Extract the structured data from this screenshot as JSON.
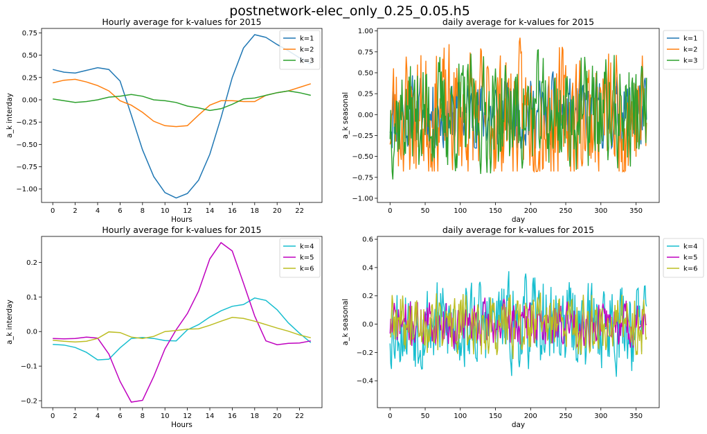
{
  "figure": {
    "suptitle": "postnetwork-elec_only_0.25_0.05.h5"
  },
  "chart_data": [
    {
      "type": "line",
      "title": "Hourly average for k-values for 2015",
      "xlabel": "Hours",
      "ylabel": "a_k interday",
      "xlim": [
        -1,
        24
      ],
      "ylim": [
        -1.15,
        0.8
      ],
      "xticks": [
        0,
        2,
        4,
        6,
        8,
        10,
        12,
        14,
        16,
        18,
        20,
        22
      ],
      "yticks": [
        0.75,
        0.5,
        0.25,
        0.0,
        -0.25,
        -0.5,
        -0.75,
        -1.0
      ],
      "ytick_labels": [
        "0.75",
        "0.50",
        "0.25",
        "0.00",
        "−0.25",
        "−0.50",
        "−0.75",
        "−1.00"
      ],
      "legend_position": "top-right",
      "series_kind": "hourly",
      "x": [
        0,
        1,
        2,
        3,
        4,
        5,
        6,
        7,
        8,
        9,
        10,
        11,
        12,
        13,
        14,
        15,
        16,
        17,
        18,
        19,
        20,
        21,
        22,
        23
      ],
      "series": [
        {
          "name": "k=1",
          "color": "#1f77b4",
          "values": [
            0.34,
            0.31,
            0.3,
            0.33,
            0.36,
            0.34,
            0.21,
            -0.17,
            -0.56,
            -0.86,
            -1.04,
            -1.1,
            -1.05,
            -0.9,
            -0.61,
            -0.2,
            0.25,
            0.58,
            0.73,
            0.7,
            0.62,
            0.55,
            0.47,
            0.4
          ]
        },
        {
          "name": "k=2",
          "color": "#ff7f0e",
          "values": [
            0.19,
            0.22,
            0.23,
            0.2,
            0.16,
            0.1,
            -0.01,
            -0.06,
            -0.14,
            -0.24,
            -0.29,
            -0.3,
            -0.29,
            -0.17,
            -0.06,
            -0.01,
            -0.01,
            -0.02,
            -0.02,
            0.05,
            0.08,
            0.1,
            0.14,
            0.18
          ]
        },
        {
          "name": "k=3",
          "color": "#2ca02c",
          "values": [
            0.01,
            -0.01,
            -0.03,
            -0.02,
            0.0,
            0.03,
            0.04,
            0.06,
            0.04,
            0.0,
            -0.01,
            -0.03,
            -0.07,
            -0.09,
            -0.12,
            -0.1,
            -0.05,
            0.01,
            0.02,
            0.05,
            0.08,
            0.1,
            0.08,
            0.05
          ]
        }
      ]
    },
    {
      "type": "line",
      "title": "daily average for k-values for 2015",
      "xlabel": "day",
      "ylabel": "a_k seasonal",
      "xlim": [
        -18,
        383
      ],
      "ylim": [
        -1.05,
        1.03
      ],
      "xticks": [
        0,
        50,
        100,
        150,
        200,
        250,
        300,
        350
      ],
      "yticks": [
        1.0,
        0.75,
        0.5,
        0.25,
        0.0,
        -0.25,
        -0.5,
        -0.75,
        -1.0
      ],
      "ytick_labels": [
        "1.00",
        "0.75",
        "0.50",
        "0.25",
        "0.00",
        "−0.25",
        "−0.50",
        "−0.75",
        "−1.00"
      ],
      "legend_position": "outside-right",
      "series_kind": "daily",
      "x_range": [
        0,
        365
      ],
      "series": [
        {
          "name": "k=1",
          "color": "#1f77b4",
          "amplitude": 0.28,
          "clip": [
            -0.4,
            0.62
          ],
          "seed": 11
        },
        {
          "name": "k=2",
          "color": "#ff7f0e",
          "amplitude": 0.5,
          "clip": [
            -0.68,
            0.94
          ],
          "seed": 23
        },
        {
          "name": "k=3",
          "color": "#2ca02c",
          "amplitude": 0.42,
          "clip": [
            -0.93,
            0.82
          ],
          "seed": 37
        }
      ]
    },
    {
      "type": "line",
      "title": "Hourly average for k-values for 2015",
      "xlabel": "Hours",
      "ylabel": "a_k interday",
      "xlim": [
        -1,
        24
      ],
      "ylim": [
        -0.22,
        0.275
      ],
      "xticks": [
        0,
        2,
        4,
        6,
        8,
        10,
        12,
        14,
        16,
        18,
        20,
        22
      ],
      "yticks": [
        0.2,
        0.1,
        0.0,
        -0.1,
        -0.2
      ],
      "ytick_labels": [
        "0.2",
        "0.1",
        "0.0",
        "−0.1",
        "−0.2"
      ],
      "legend_position": "top-right",
      "series_kind": "hourly",
      "x": [
        0,
        1,
        2,
        3,
        4,
        5,
        6,
        7,
        8,
        9,
        10,
        11,
        12,
        13,
        14,
        15,
        16,
        17,
        18,
        19,
        20,
        21,
        22,
        23
      ],
      "series": [
        {
          "name": "k=4",
          "color": "#17becf",
          "values": [
            -0.037,
            -0.039,
            -0.046,
            -0.06,
            -0.082,
            -0.08,
            -0.047,
            -0.02,
            -0.017,
            -0.02,
            -0.026,
            -0.027,
            0.005,
            0.02,
            0.042,
            0.06,
            0.073,
            0.078,
            0.097,
            0.09,
            0.063,
            0.025,
            -0.005,
            -0.032
          ]
        },
        {
          "name": "k=5",
          "color": "#bf00bf",
          "values": [
            -0.02,
            -0.021,
            -0.02,
            -0.016,
            -0.019,
            -0.065,
            -0.144,
            -0.204,
            -0.199,
            -0.13,
            -0.05,
            0.005,
            0.052,
            0.117,
            0.21,
            0.257,
            0.233,
            0.14,
            0.045,
            -0.027,
            -0.038,
            -0.034,
            -0.033,
            -0.027
          ]
        },
        {
          "name": "k=6",
          "color": "#bcbd22",
          "values": [
            -0.025,
            -0.028,
            -0.03,
            -0.028,
            -0.02,
            -0.001,
            -0.003,
            -0.016,
            -0.02,
            -0.014,
            0.0,
            0.003,
            0.007,
            0.008,
            0.018,
            0.03,
            0.041,
            0.038,
            0.03,
            0.02,
            0.01,
            0.001,
            -0.01,
            -0.018
          ]
        }
      ]
    },
    {
      "type": "line",
      "title": "daily average for k-values for 2015",
      "xlabel": "day",
      "ylabel": "a_k seasonal",
      "xlim": [
        -18,
        383
      ],
      "ylim": [
        -0.59,
        0.62
      ],
      "xticks": [
        0,
        50,
        100,
        150,
        200,
        250,
        300,
        350
      ],
      "yticks": [
        0.6,
        0.4,
        0.2,
        0.0,
        -0.2,
        -0.4
      ],
      "ytick_labels": [
        "0.6",
        "0.4",
        "0.2",
        "0.0",
        "−0.2",
        "−0.4"
      ],
      "legend_position": "outside-right",
      "series_kind": "daily",
      "x_range": [
        0,
        365
      ],
      "series": [
        {
          "name": "k=4",
          "color": "#17becf",
          "amplitude": 0.2,
          "clip": [
            -0.54,
            0.56
          ],
          "seed": 53
        },
        {
          "name": "k=5",
          "color": "#bf00bf",
          "amplitude": 0.1,
          "clip": [
            -0.24,
            0.2
          ],
          "seed": 71
        },
        {
          "name": "k=6",
          "color": "#bcbd22",
          "amplitude": 0.14,
          "clip": [
            -0.36,
            0.36
          ],
          "seed": 89
        }
      ]
    }
  ]
}
